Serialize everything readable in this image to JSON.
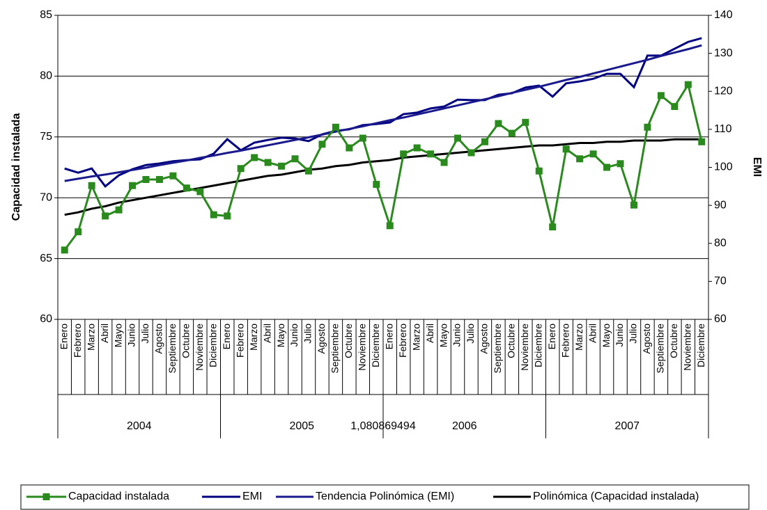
{
  "chart_data": {
    "type": "line",
    "categories": [
      "Enero",
      "Febrero",
      "Marzo",
      "Abril",
      "Mayo",
      "Junio",
      "Julio",
      "Agosto",
      "Septiembre",
      "Octubre",
      "Noviembre",
      "Diciembre",
      "Enero",
      "Febrero",
      "Marzo",
      "Abril",
      "Mayo",
      "Junio",
      "Julio",
      "Agosto",
      "Septiembre",
      "Octubre",
      "Noviembre",
      "Diciembre",
      "Enero",
      "Febrero",
      "Marzo",
      "Abril",
      "Mayo",
      "Junio",
      "Julio",
      "Agosto",
      "Septiembre",
      "Octubre",
      "Noviembre",
      "Diciembre",
      "Enero",
      "Febrero",
      "Marzo",
      "Abril",
      "Mayo",
      "Junio",
      "Julio",
      "Agosto",
      "Septiembre",
      "Octubre",
      "Noviembre",
      "Diciembre"
    ],
    "year_groups": [
      "2004",
      "2005",
      "2006",
      "2007"
    ],
    "annotation": "1,080869494",
    "ylabel": "Capacidad instalada",
    "y2label": "EMI",
    "ylim": [
      60,
      85
    ],
    "yticks": [
      60,
      65,
      70,
      75,
      80,
      85
    ],
    "y2lim": [
      60,
      140
    ],
    "y2ticks": [
      60,
      70,
      80,
      90,
      100,
      110,
      120,
      130,
      140
    ],
    "grid": true,
    "legend": "bottom",
    "series": [
      {
        "name": "Capacidad instalada",
        "color": "#2a8a1e",
        "marker": "square",
        "values": [
          65.7,
          67.2,
          71.0,
          68.5,
          69.0,
          71.0,
          71.5,
          71.5,
          71.8,
          70.8,
          70.5,
          68.6,
          68.5,
          72.4,
          73.3,
          72.9,
          72.6,
          73.2,
          72.2,
          74.4,
          75.8,
          74.1,
          74.9,
          71.1,
          67.7,
          73.6,
          74.1,
          73.6,
          72.9,
          74.9,
          73.7,
          74.6,
          76.1,
          75.3,
          76.2,
          72.2,
          67.6,
          74.0,
          73.2,
          73.6,
          72.5,
          72.8,
          69.4,
          75.8,
          78.4,
          77.5,
          79.3,
          74.6
        ]
      },
      {
        "name": "EMI",
        "color": "#000080",
        "axis": "y2",
        "values": [
          99.7,
          98.6,
          99.7,
          95.0,
          97.9,
          99.5,
          100.6,
          101.0,
          101.6,
          101.9,
          102.1,
          103.6,
          107.4,
          104.5,
          106.5,
          107.2,
          107.8,
          107.6,
          106.9,
          108.7,
          109.6,
          110.0,
          111.1,
          111.4,
          111.8,
          114.0,
          114.4,
          115.5,
          116.0,
          117.8,
          117.7,
          117.7,
          119.1,
          119.5,
          121.0,
          121.5,
          118.6,
          122.1,
          122.6,
          123.3,
          124.6,
          124.6,
          121.1,
          129.4,
          129.4,
          131.2,
          133.0,
          134.0
        ]
      },
      {
        "name": "Tendencia Polinómica (EMI)",
        "color": "#1a1a8c",
        "axis": "y2",
        "values": [
          96.4,
          97.0,
          97.6,
          98.1,
          98.7,
          99.3,
          99.9,
          100.6,
          101.2,
          101.8,
          102.5,
          103.1,
          103.8,
          104.4,
          105.1,
          105.8,
          106.5,
          107.2,
          107.9,
          108.6,
          109.4,
          110.1,
          110.8,
          111.6,
          112.4,
          113.1,
          113.9,
          114.7,
          115.5,
          116.3,
          117.1,
          117.9,
          118.7,
          119.6,
          120.4,
          121.2,
          122.1,
          123.0,
          123.8,
          124.7,
          125.6,
          126.5,
          127.4,
          128.3,
          129.3,
          130.2,
          131.1,
          132.1
        ]
      },
      {
        "name": "Polinómica (Capacidad instalada)",
        "color": "#000000",
        "values": [
          68.6,
          68.8,
          69.1,
          69.3,
          69.6,
          69.8,
          70.0,
          70.2,
          70.4,
          70.6,
          70.8,
          71.0,
          71.2,
          71.4,
          71.6,
          71.8,
          71.9,
          72.1,
          72.3,
          72.4,
          72.6,
          72.7,
          72.9,
          73.0,
          73.1,
          73.3,
          73.4,
          73.5,
          73.6,
          73.7,
          73.8,
          73.9,
          74.0,
          74.1,
          74.2,
          74.3,
          74.3,
          74.4,
          74.5,
          74.5,
          74.6,
          74.6,
          74.7,
          74.7,
          74.7,
          74.8,
          74.8,
          74.8
        ]
      }
    ]
  }
}
